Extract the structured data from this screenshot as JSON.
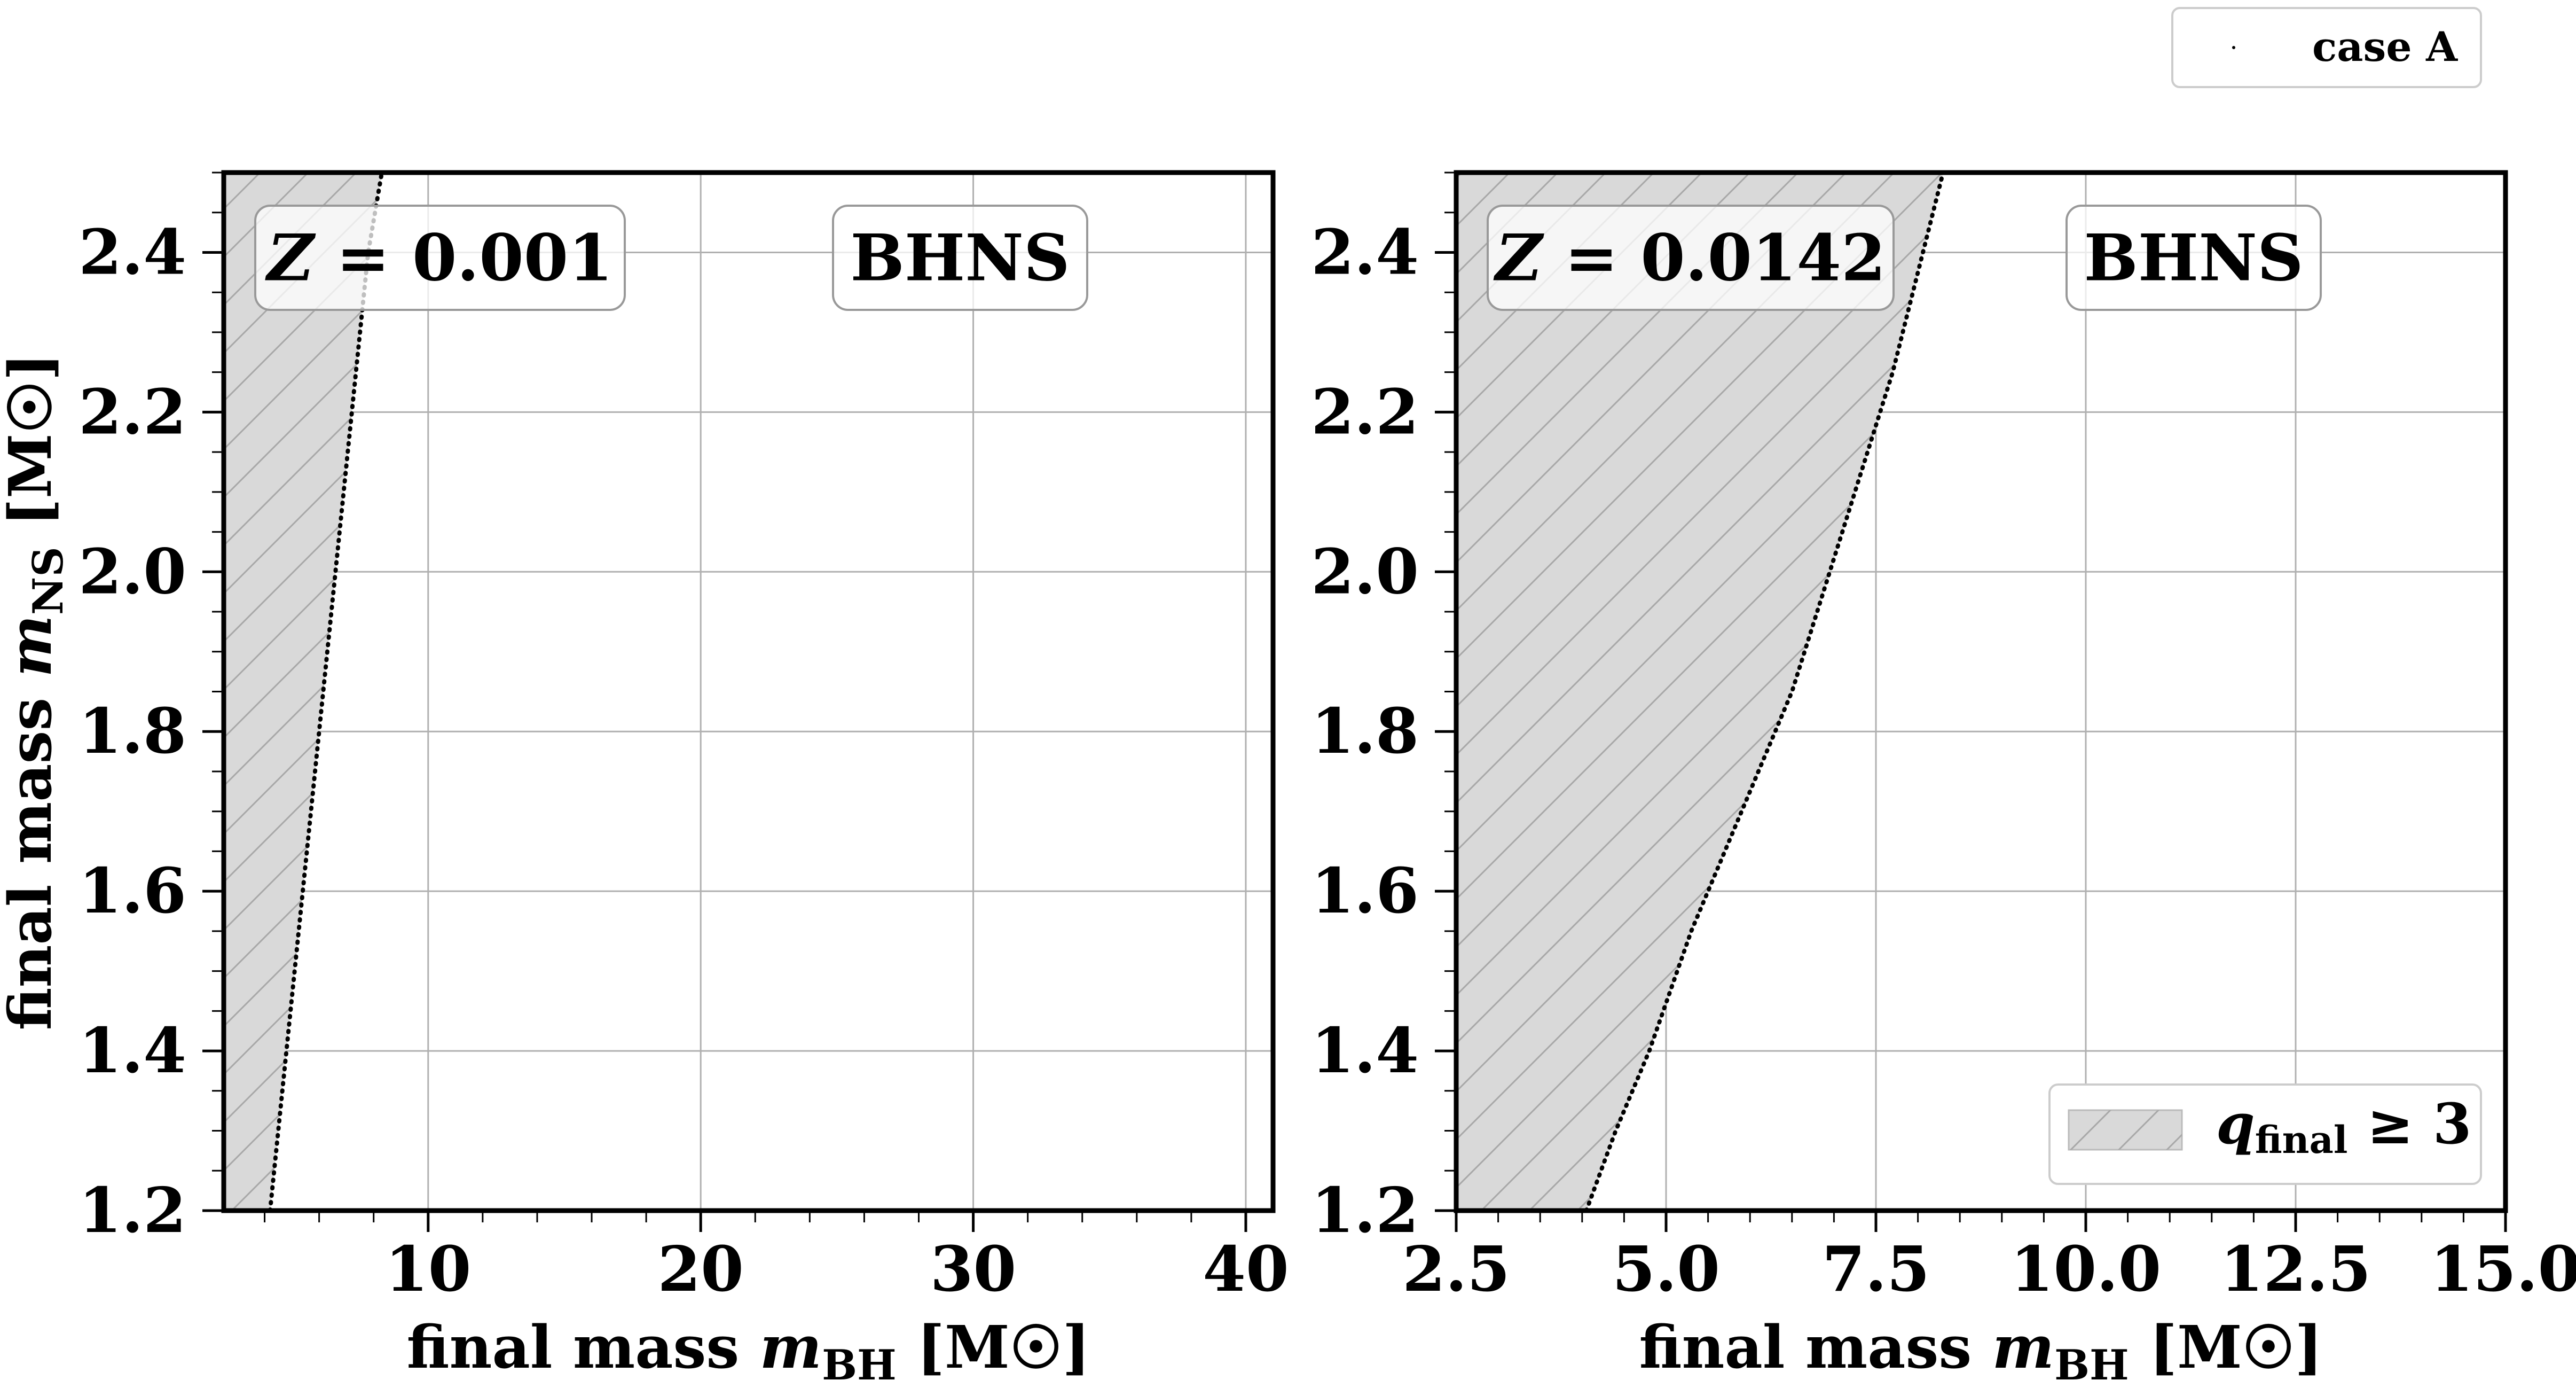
{
  "legend_top": {
    "label": "case A"
  },
  "chart_data": [
    {
      "type": "area",
      "xlim": [
        2.5,
        41
      ],
      "ylim": [
        1.2,
        2.5
      ],
      "xticks": [
        10,
        20,
        30,
        40
      ],
      "xtick_labels": [
        "10",
        "20",
        "30",
        "40"
      ],
      "yticks": [
        1.2,
        1.4,
        1.6,
        1.8,
        2.0,
        2.2,
        2.4
      ],
      "ytick_labels": [
        "1.2",
        "1.4",
        "1.6",
        "1.8",
        "2.0",
        "2.2",
        "2.4"
      ],
      "xlabel": "final mass m_BH [M☉]",
      "ylabel": "final mass m_NS [M☉]",
      "annotations": [
        "Z = 0.001",
        "BHNS"
      ],
      "grid": true,
      "series": [
        {
          "name": "case A",
          "style": "dotted",
          "x": [
            4.2,
            4.8,
            5.4,
            6.0,
            6.6,
            7.2,
            7.8,
            8.3
          ],
          "y": [
            1.2,
            1.4,
            1.6,
            1.8,
            2.0,
            2.2,
            2.4,
            2.5
          ]
        }
      ],
      "shaded_region": "q_final ≥ 3 (left of boundary)",
      "color": "#d9d9d9"
    },
    {
      "type": "area",
      "xlim": [
        2.5,
        15.0
      ],
      "ylim": [
        1.2,
        2.5
      ],
      "xticks": [
        2.5,
        5.0,
        7.5,
        10.0,
        12.5,
        15.0
      ],
      "xtick_labels": [
        "2.5",
        "5.0",
        "7.5",
        "10.0",
        "12.5",
        "15.0"
      ],
      "yticks": [
        1.2,
        1.4,
        1.6,
        1.8,
        2.0,
        2.2,
        2.4
      ],
      "ytick_labels": [
        "1.2",
        "1.4",
        "1.6",
        "1.8",
        "2.0",
        "2.2",
        "2.4"
      ],
      "xlabel": "final mass m_BH [M☉]",
      "ylabel": "",
      "annotations": [
        "Z = 0.0142",
        "BHNS"
      ],
      "grid": true,
      "series": [
        {
          "name": "case A",
          "style": "dotted",
          "x": [
            4.05,
            4.4,
            4.8,
            5.3,
            5.9,
            6.5,
            7.1,
            7.7,
            8.3
          ],
          "y": [
            1.2,
            1.3,
            1.4,
            1.55,
            1.7,
            1.85,
            2.05,
            2.25,
            2.5
          ]
        }
      ],
      "shaded_region": "q_final ≥ 3 (left of boundary)",
      "legend": {
        "label": "q_final ≥ 3",
        "placement": "lower-right"
      },
      "color": "#d9d9d9"
    }
  ]
}
